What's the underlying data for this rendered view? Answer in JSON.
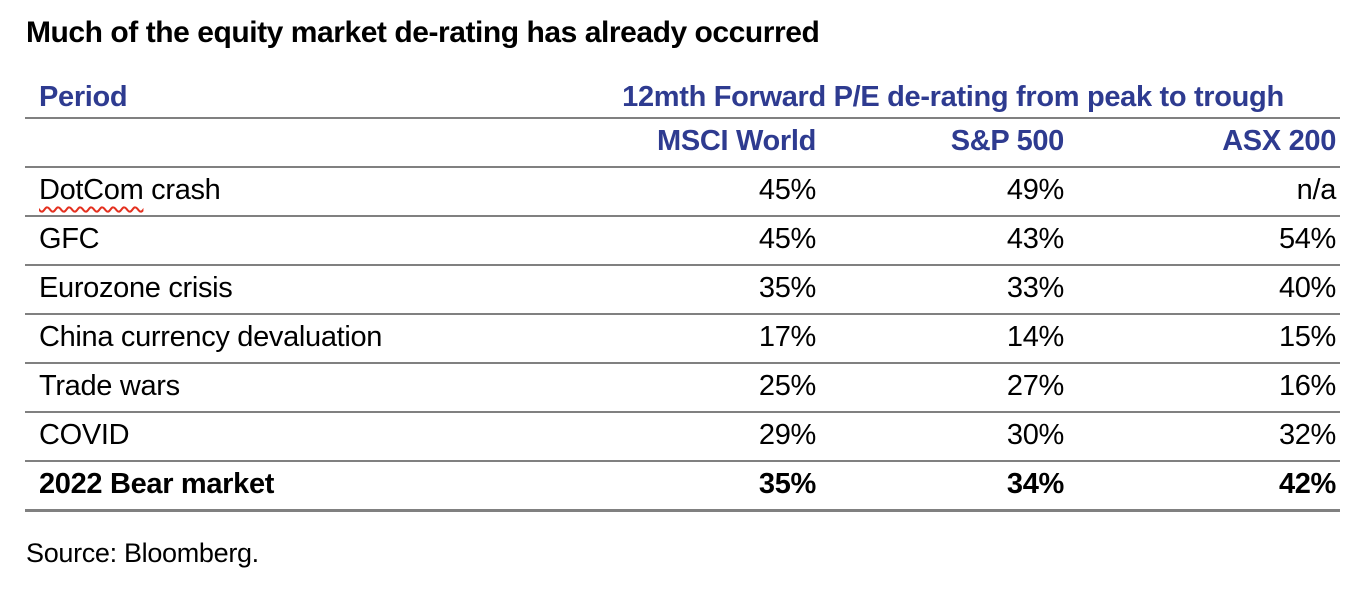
{
  "title": "Much of the equity market de-rating has already occurred",
  "table": {
    "period_header": "Period",
    "group_header": "12mth Forward P/E de-rating from peak to trough",
    "columns": [
      "MSCI World",
      "S&P 500",
      "ASX 200"
    ],
    "rows": [
      {
        "period": "DotCom crash",
        "spellcheck_word": "DotCom",
        "period_rest": " crash",
        "values": [
          "45%",
          "49%",
          "n/a"
        ]
      },
      {
        "period": "GFC",
        "values": [
          "45%",
          "43%",
          "54%"
        ]
      },
      {
        "period": "Eurozone crisis",
        "values": [
          "35%",
          "33%",
          "40%"
        ]
      },
      {
        "period": "China currency devaluation",
        "values": [
          "17%",
          "14%",
          "15%"
        ]
      },
      {
        "period": "Trade wars",
        "values": [
          "25%",
          "27%",
          "16%"
        ]
      },
      {
        "period": "COVID",
        "values": [
          "29%",
          "30%",
          "32%"
        ]
      },
      {
        "period": "2022 Bear market",
        "values": [
          "35%",
          "34%",
          "42%"
        ],
        "bold": true
      }
    ]
  },
  "source": "Source: Bloomberg.",
  "colors": {
    "header_blue": "#2e3b90",
    "grid_line_gray": "#808080",
    "spellcheck_red": "#e4301f",
    "body_text_black": "#000000",
    "background": "#ffffff"
  }
}
